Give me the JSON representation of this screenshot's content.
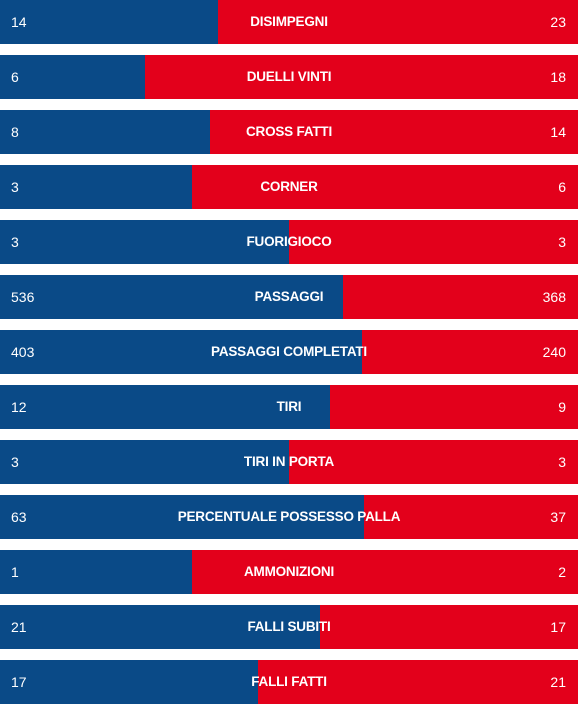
{
  "colors": {
    "home": "#0a4a87",
    "away": "#e3001b",
    "text": "#ffffff"
  },
  "stats": [
    {
      "label": "DISIMPEGNI",
      "home": "14",
      "away": "23",
      "home_share": 0.378
    },
    {
      "label": "DUELLI VINTI",
      "home": "6",
      "away": "18",
      "home_share": 0.25
    },
    {
      "label": "CROSS FATTI",
      "home": "8",
      "away": "14",
      "home_share": 0.364
    },
    {
      "label": "CORNER",
      "home": "3",
      "away": "6",
      "home_share": 0.333
    },
    {
      "label": "FUORIGIOCO",
      "home": "3",
      "away": "3",
      "home_share": 0.5
    },
    {
      "label": "PASSAGGI",
      "home": "536",
      "away": "368",
      "home_share": 0.593
    },
    {
      "label": "PASSAGGI COMPLETATI",
      "home": "403",
      "away": "240",
      "home_share": 0.627
    },
    {
      "label": "TIRI",
      "home": "12",
      "away": "9",
      "home_share": 0.571
    },
    {
      "label": "TIRI IN PORTA",
      "home": "3",
      "away": "3",
      "home_share": 0.5
    },
    {
      "label": "PERCENTUALE POSSESSO PALLA",
      "home": "63",
      "away": "37",
      "home_share": 0.63
    },
    {
      "label": "AMMONIZIONI",
      "home": "1",
      "away": "2",
      "home_share": 0.333
    },
    {
      "label": "FALLI SUBITI",
      "home": "21",
      "away": "17",
      "home_share": 0.553
    },
    {
      "label": "FALLI FATTI",
      "home": "17",
      "away": "21",
      "home_share": 0.447
    }
  ]
}
